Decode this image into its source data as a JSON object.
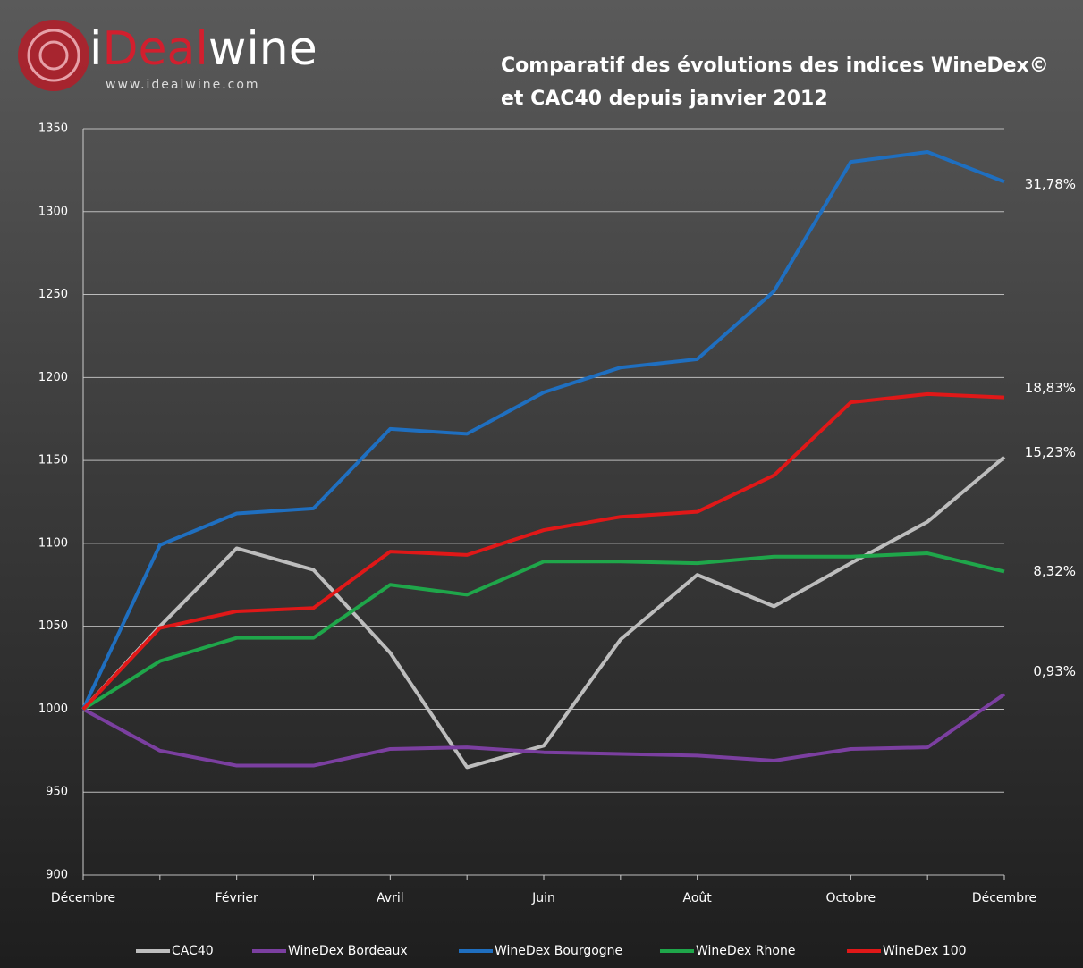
{
  "chart_data": {
    "type": "line",
    "logo": {
      "parts": [
        "i",
        "Deal",
        "wine"
      ],
      "url": "www.idealwine.com"
    },
    "title": [
      "Comparatif  des  évolutions  des indices  WineDex©",
      "et CAC40 depuis janvier 2012"
    ],
    "categories": [
      "Décembre",
      null,
      "Février",
      null,
      "Avril",
      null,
      "Juin",
      null,
      "Août",
      null,
      "Octobre",
      null,
      "Décembre"
    ],
    "ylim": [
      900,
      1350
    ],
    "yticks": [
      900,
      950,
      1000,
      1050,
      1100,
      1150,
      1200,
      1250,
      1300,
      1350
    ],
    "grid": true,
    "legend": "bottom",
    "series": [
      {
        "name": "CAC40",
        "color": "#bdbdbd",
        "values": [
          1000,
          1050,
          1097,
          1084,
          1034,
          965,
          978,
          1042,
          1081,
          1062,
          1088,
          1113,
          1152
        ],
        "end_label": "15,23%"
      },
      {
        "name": "WineDex Bordeaux",
        "color": "#7b3fa0",
        "values": [
          1000,
          975,
          966,
          966,
          976,
          977,
          974,
          973,
          972,
          969,
          976,
          977,
          1009
        ],
        "end_label": "0,93%"
      },
      {
        "name": "WineDex Bourgogne",
        "color": "#1f6fc0",
        "values": [
          1000,
          1099,
          1118,
          1121,
          1169,
          1166,
          1191,
          1206,
          1211,
          1252,
          1330,
          1336,
          1318
        ],
        "end_label": "31,78%"
      },
      {
        "name": "WineDex Rhone",
        "color": "#1fa64a",
        "values": [
          1000,
          1029,
          1043,
          1043,
          1075,
          1069,
          1089,
          1089,
          1088,
          1092,
          1092,
          1094,
          1083
        ],
        "end_label": "8,32%"
      },
      {
        "name": "WineDex 100",
        "color": "#e01818",
        "values": [
          1000,
          1049,
          1059,
          1061,
          1095,
          1093,
          1108,
          1116,
          1119,
          1141,
          1185,
          1190,
          1188
        ],
        "end_label": "18,83%"
      }
    ]
  }
}
